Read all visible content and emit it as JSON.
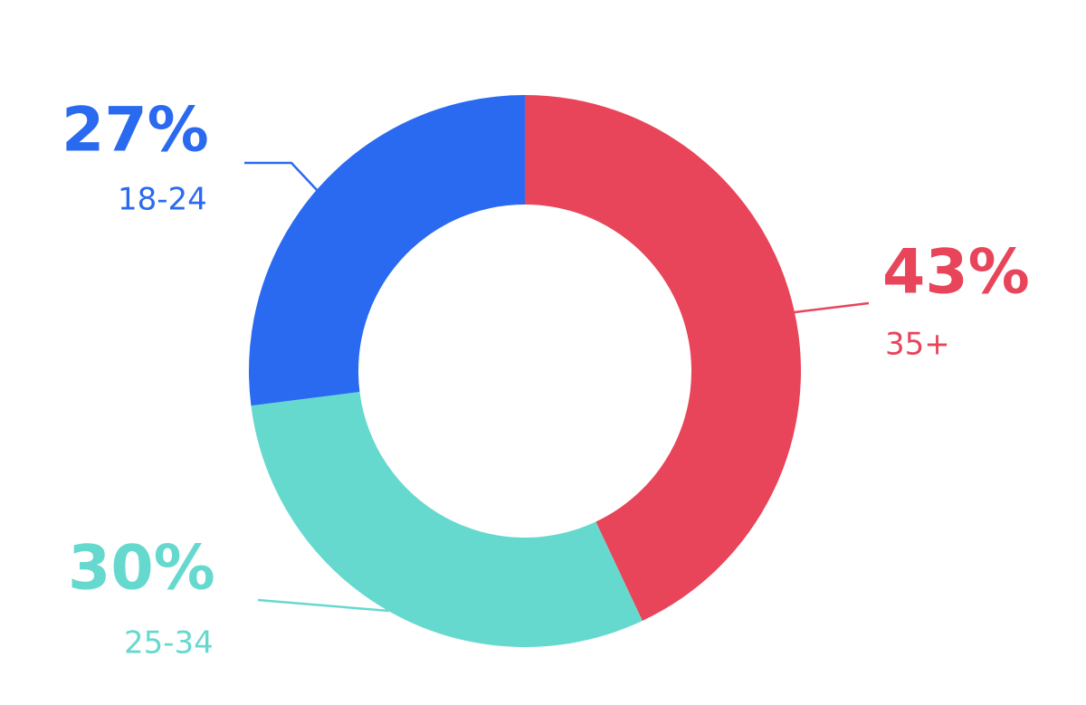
{
  "chart_data": {
    "type": "donut",
    "categories": [
      "35+",
      "25-34",
      "18-24"
    ],
    "values": [
      43,
      30,
      27
    ],
    "value_labels": [
      "43%",
      "30%",
      "27%"
    ],
    "colors": [
      "#e8455a",
      "#66d9cf",
      "#2a6af0"
    ]
  }
}
